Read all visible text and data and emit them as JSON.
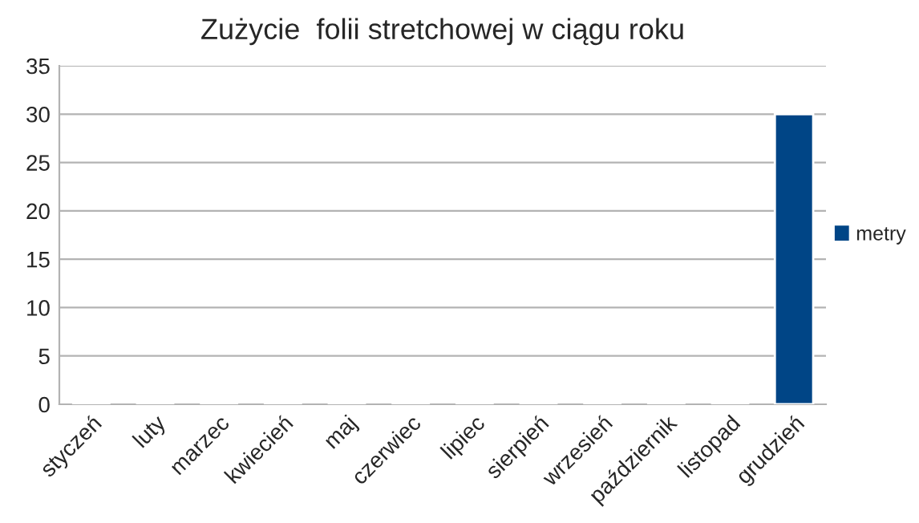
{
  "chart_data": {
    "type": "bar",
    "title": "Zużycie  folii stretchowej w ciągu roku",
    "categories": [
      "styczeń",
      "luty",
      "marzec",
      "kwiecień",
      "maj",
      "czerwiec",
      "lipiec",
      "sierpień",
      "wrzesień",
      "październik",
      "listopad",
      "grudzień"
    ],
    "series": [
      {
        "name": "metry",
        "color": "#004586",
        "values": [
          0,
          0,
          0,
          0,
          0,
          0,
          0,
          0,
          0,
          0,
          0,
          30
        ]
      }
    ],
    "ylim": [
      0,
      35
    ],
    "yticks": [
      0,
      5,
      10,
      15,
      20,
      25,
      30,
      35
    ],
    "grid": "y",
    "legend": "right"
  }
}
